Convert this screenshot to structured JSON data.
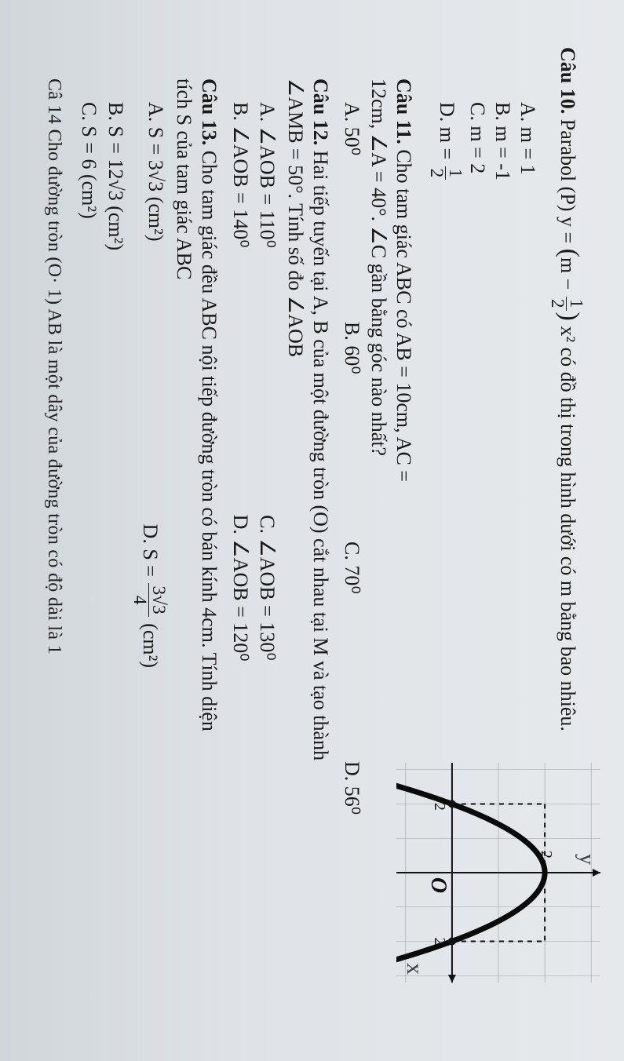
{
  "q10": {
    "label": "Câu 10.",
    "stem_pre": " Parabol (P) y = ",
    "stem_mid_open": "(",
    "stem_mid_close": ")",
    "frac_num": "1",
    "frac_den": "2",
    "stem_post": " x² có đồ thị trong hình dưới có m bằng bao nhiêu.",
    "opts": {
      "A": "A. m = 1",
      "B": "B. m = -1",
      "C": "C. m = 2",
      "D_pre": "D. m = ",
      "D_num": "1",
      "D_den": "2"
    }
  },
  "graph": {
    "bg": "#cfd4d9",
    "axis_color": "#111111",
    "curve_color": "#0a0a0a",
    "curve_width": 7,
    "dash_color": "#111111",
    "tick_labels": {
      "yval": "2",
      "xneg": "-2",
      "xpos": "2",
      "origin": "O"
    },
    "y_hand": "y",
    "x_hand": "x",
    "type": "parabola",
    "direction": "down",
    "vertex": [
      0,
      2
    ],
    "roots": [
      -2,
      2
    ],
    "xlim": [
      -3.2,
      3.2
    ],
    "ylim": [
      -1.2,
      3.2
    ],
    "axis_width": 2,
    "dash_pattern": "6,6",
    "label_fontsize": 20,
    "origin_font": "italic bold 28px serif"
  },
  "q11": {
    "label": "Câu 11.",
    "stem_a": " Cho tam giác ABC có AB = 10cm, AC =",
    "stem_b": "12cm, ∠A = 40°. ∠C gần bằng góc nào nhất?",
    "opts": {
      "A": "A. 50⁰",
      "B": "B. 60⁰",
      "C": "C. 70⁰",
      "D": "D. 56⁰"
    }
  },
  "q12": {
    "label": "Câu 12.",
    "stem_a": " Hai tiếp tuyến tại A, B của một đường tròn (O) cắt nhau tại M và tạo thành",
    "stem_b": "∠AMB = 50°. Tính số đo ∠AOB",
    "opts": {
      "A": "A. ∠AOB = 110⁰",
      "B": "B. ∠AOB = 140⁰",
      "C": "C. ∠AOB = 130⁰",
      "D": "D. ∠AOB = 120⁰"
    }
  },
  "q13": {
    "label": "Câu 13.",
    "stem_a": " Cho tam giác đều ABC nội tiếp đường tròn có bán kính 4cm. Tính diện",
    "stem_b": "tích S của tam giác ABC",
    "opts": {
      "A": "A. S = 3√3 (cm²)",
      "B": "B. S = 12√3 (cm²)",
      "C": "C. S = 6 (cm²)",
      "D_pre": "D. S = ",
      "D_num": "3√3",
      "D_den": "4",
      "D_post": " (cm²)"
    }
  },
  "trailing": "Câ  14  Cho đường tròn (O· 1)  AB là một dây của đường tròn có độ dài là 1"
}
